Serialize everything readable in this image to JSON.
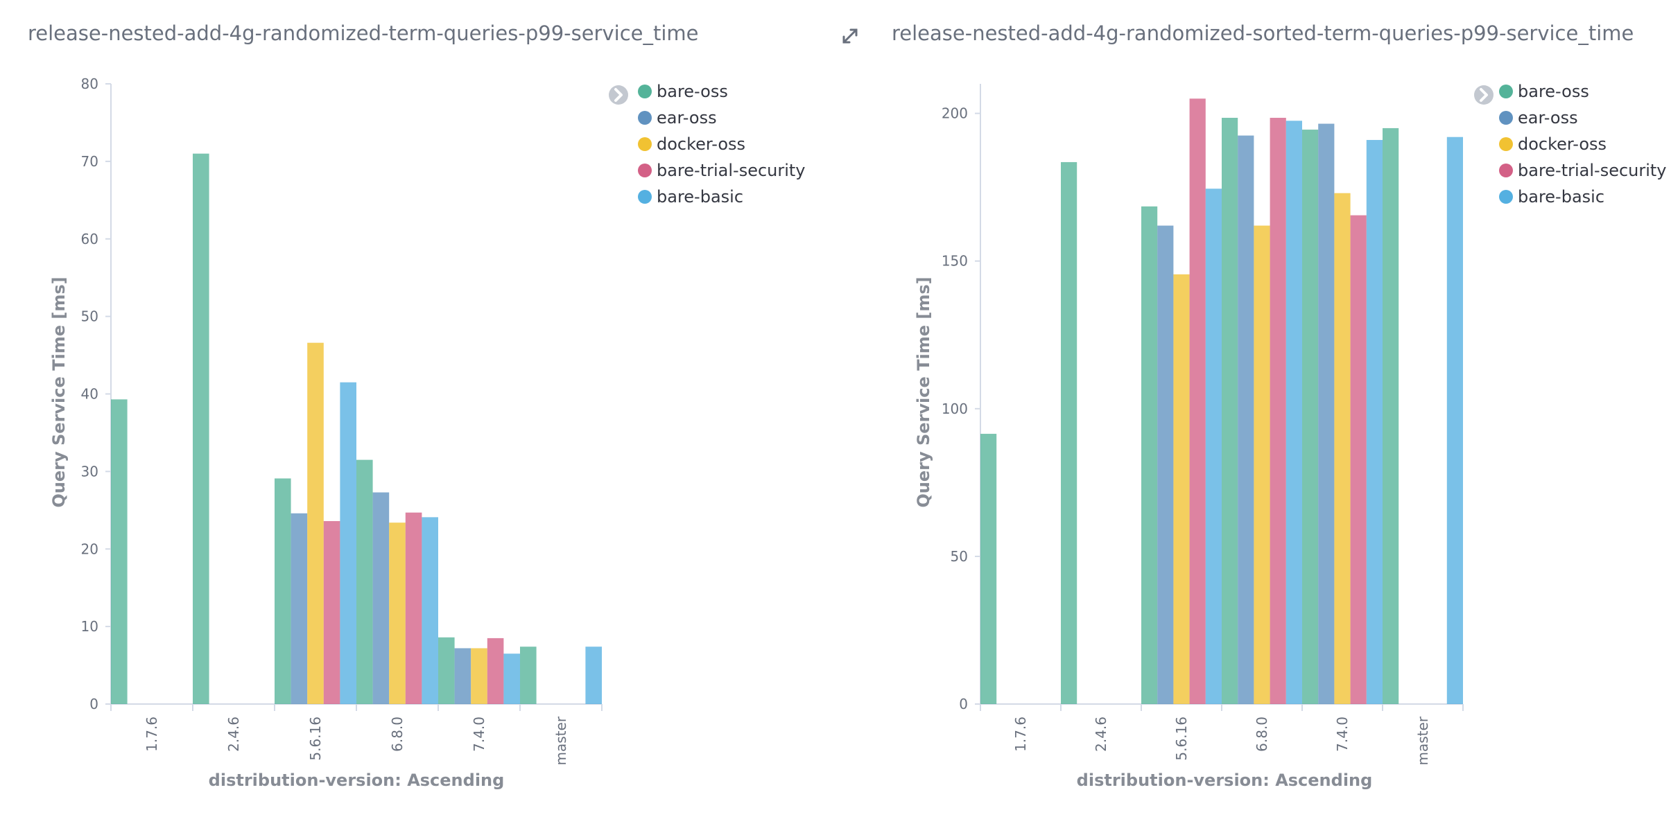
{
  "chart_data": [
    {
      "type": "bar",
      "title": "release-nested-add-4g-randomized-term-queries-p99-service_time",
      "xlabel": "distribution-version: Ascending",
      "ylabel": "Query Service Time [ms]",
      "categories": [
        "1.7.6",
        "2.4.6",
        "5.6.16",
        "6.8.0",
        "7.4.0",
        "master"
      ],
      "ylim": [
        0,
        80
      ],
      "yticks": [
        0,
        10,
        20,
        30,
        40,
        50,
        60,
        70,
        80
      ],
      "legend_position": "top-right",
      "grid": false,
      "series": [
        {
          "name": "bare-oss",
          "color": "#54b399",
          "values": [
            39.3,
            71.0,
            29.1,
            31.5,
            8.6,
            7.4
          ]
        },
        {
          "name": "ear-oss",
          "color": "#6092c0",
          "values": [
            null,
            null,
            24.6,
            27.3,
            7.2,
            null
          ]
        },
        {
          "name": "docker-oss",
          "color": "#f1c232",
          "values": [
            null,
            null,
            46.6,
            23.4,
            7.2,
            null
          ]
        },
        {
          "name": "bare-trial-security",
          "color": "#d36086",
          "values": [
            null,
            null,
            23.6,
            24.7,
            8.5,
            null
          ]
        },
        {
          "name": "bare-basic",
          "color": "#54b0e1",
          "values": [
            null,
            null,
            41.5,
            24.1,
            6.5,
            7.4
          ]
        }
      ]
    },
    {
      "type": "bar",
      "title": "release-nested-add-4g-randomized-sorted-term-queries-p99-service_time",
      "xlabel": "distribution-version: Ascending",
      "ylabel": "Query Service Time [ms]",
      "categories": [
        "1.7.6",
        "2.4.6",
        "5.6.16",
        "6.8.0",
        "7.4.0",
        "master"
      ],
      "ylim": [
        0,
        210
      ],
      "yticks": [
        0,
        50,
        100,
        150,
        200
      ],
      "legend_position": "top-right",
      "grid": false,
      "series": [
        {
          "name": "bare-oss",
          "color": "#54b399",
          "values": [
            91.5,
            183.5,
            168.5,
            198.5,
            194.5,
            195.0
          ]
        },
        {
          "name": "ear-oss",
          "color": "#6092c0",
          "values": [
            null,
            null,
            162.0,
            192.5,
            196.5,
            null
          ]
        },
        {
          "name": "docker-oss",
          "color": "#f1c232",
          "values": [
            null,
            null,
            145.5,
            162.0,
            173.0,
            null
          ]
        },
        {
          "name": "bare-trial-security",
          "color": "#d36086",
          "values": [
            null,
            null,
            205.0,
            198.5,
            165.5,
            null
          ]
        },
        {
          "name": "bare-basic",
          "color": "#54b0e1",
          "values": [
            null,
            null,
            174.5,
            197.5,
            191.0,
            192.0
          ]
        }
      ]
    }
  ],
  "ui": {
    "expand_icon": "expand-icon",
    "legend_toggle_icon": "chevron-right-icon",
    "legend_dot_color": "#d3dae6"
  }
}
